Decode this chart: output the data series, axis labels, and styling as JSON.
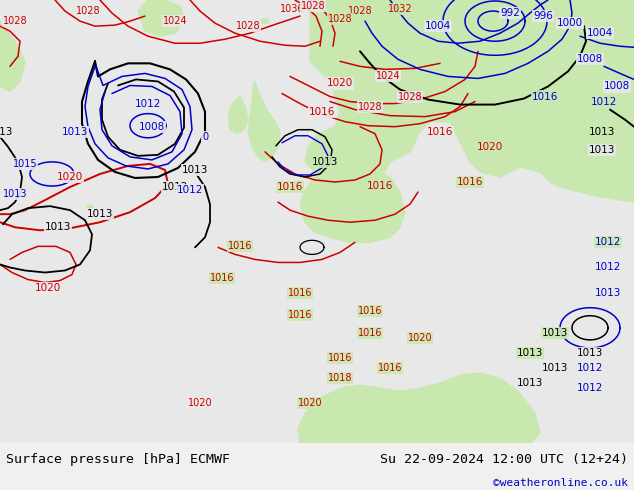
{
  "title_left": "Surface pressure [hPa] ECMWF",
  "title_right": "Su 22-09-2024 12:00 UTC (12+24)",
  "credit": "©weatheronline.co.uk",
  "ocean_color": "#e8e8e8",
  "land_color": "#c8e8b0",
  "fig_width": 6.34,
  "fig_height": 4.9,
  "dpi": 100,
  "bottom_bar_color": "#f0f0f0",
  "title_fontsize": 9.5,
  "credit_fontsize": 8,
  "credit_color": "#0000cc",
  "red_color": "#cc0000",
  "blue_color": "#0000cc",
  "black_color": "#000000"
}
